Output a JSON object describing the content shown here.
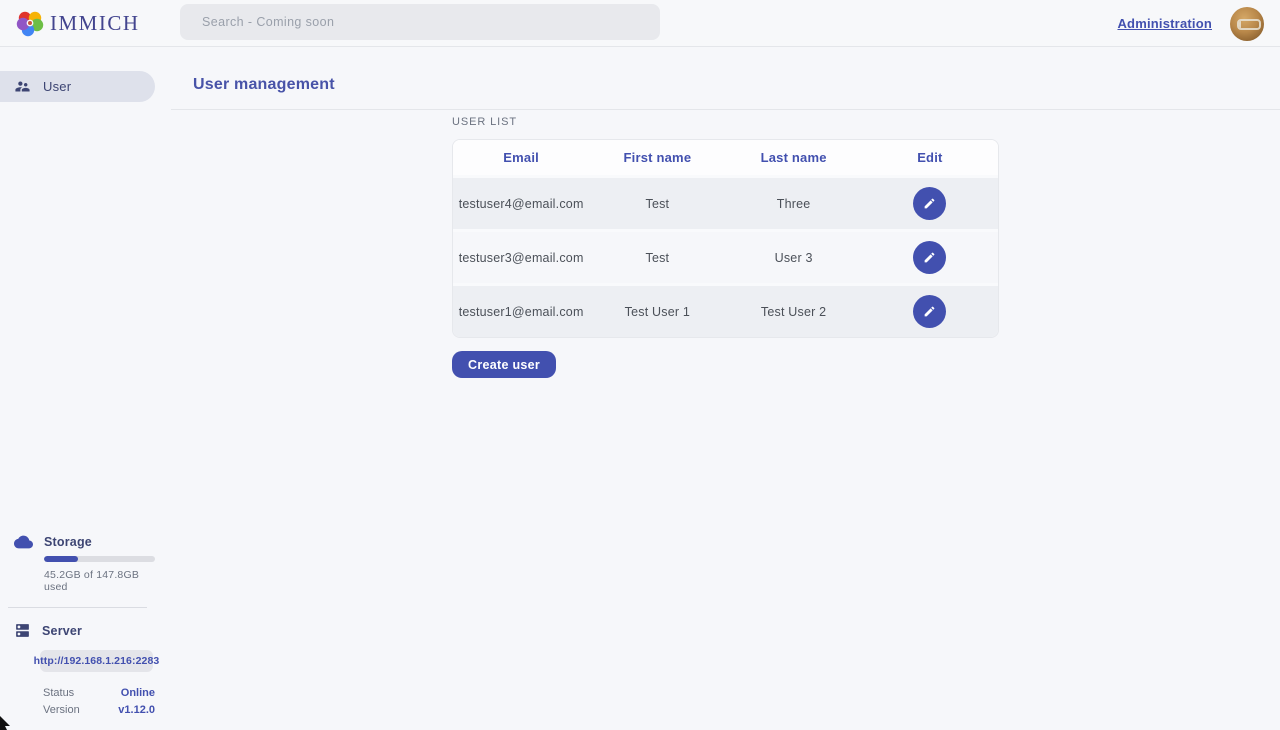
{
  "header": {
    "logo_text": "IMMICH",
    "search": {
      "placeholder": "Search - Coming soon"
    },
    "admin_link": "Administration"
  },
  "sidebar": {
    "items": [
      {
        "label": "User"
      }
    ],
    "storage": {
      "title": "Storage",
      "usage_text": "45.2GB of 147.8GB used",
      "percent_used": 30.6
    },
    "server": {
      "title": "Server",
      "url": "http://192.168.1.216:2283",
      "status_label": "Status",
      "status_value": "Online",
      "version_label": "Version",
      "version_value": "v1.12.0"
    }
  },
  "main": {
    "page_title": "User management",
    "section_label": "USER LIST",
    "table": {
      "headers": [
        "Email",
        "First name",
        "Last name",
        "Edit"
      ],
      "rows": [
        {
          "email": "testuser4@email.com",
          "first_name": "Test",
          "last_name": "Three"
        },
        {
          "email": "testuser3@email.com",
          "first_name": "Test",
          "last_name": "User 3"
        },
        {
          "email": "testuser1@email.com",
          "first_name": "Test User 1",
          "last_name": "Test User 2"
        }
      ]
    },
    "create_button": "Create user"
  },
  "icons": {
    "logo": "immich-flower-icon",
    "sidebar_user": "users-icon",
    "storage": "cloud-icon",
    "server": "server-icon",
    "edit": "pencil-icon"
  },
  "colors": {
    "primary": "#4250af",
    "page_background": "#f6f7fa",
    "sidebar_active_background": "#dee1eb",
    "row_odd": "#edeff3",
    "row_even": "#f6f7fa",
    "logo_petals": [
      "#e0342c",
      "#f7b305",
      "#6cbe45",
      "#4285f4",
      "#9156c5"
    ]
  }
}
